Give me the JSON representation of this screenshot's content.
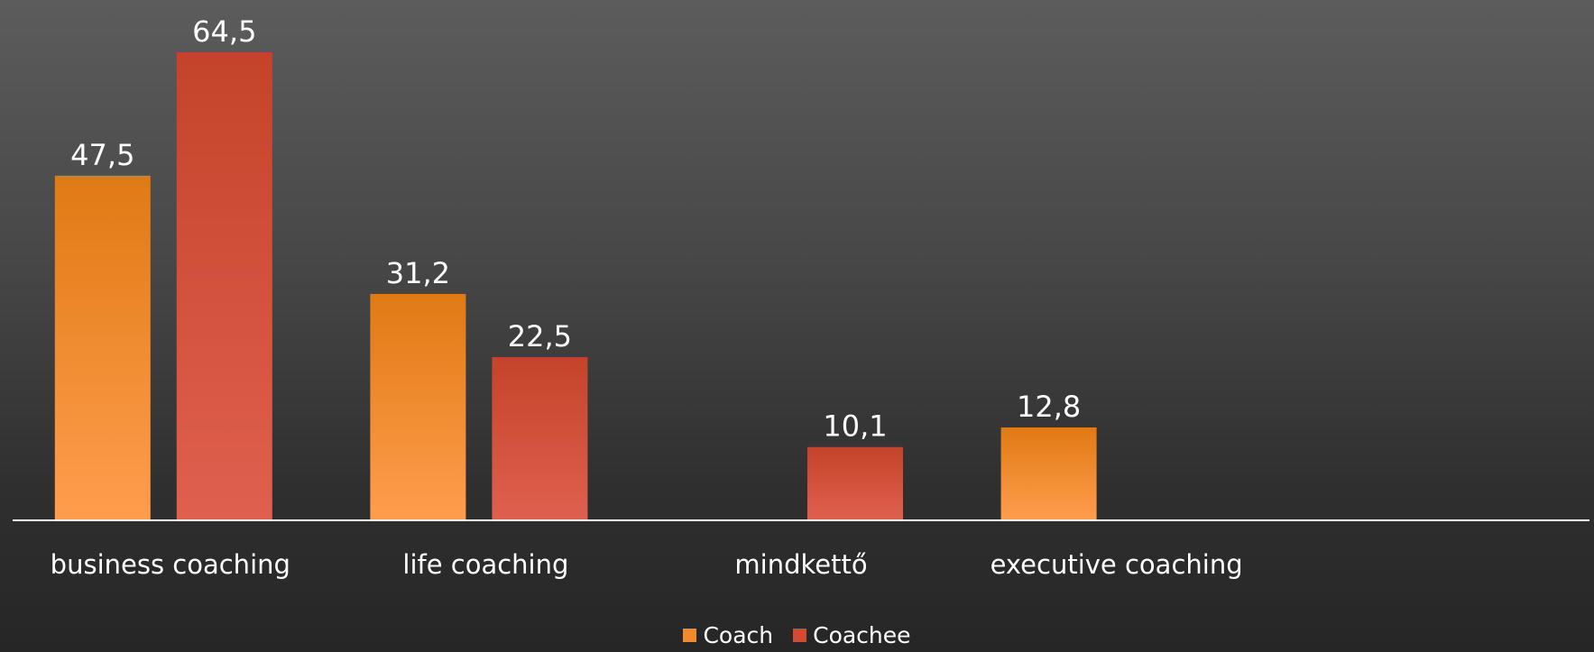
{
  "chart_data": {
    "type": "bar",
    "categories": [
      "business coaching",
      "life coaching",
      "mindkettő",
      "executive coaching",
      ""
    ],
    "series": [
      {
        "name": "Coach",
        "values": [
          47.5,
          31.2,
          null,
          12.8,
          null
        ],
        "labels": [
          "47,5",
          "31,2",
          "",
          "12,8",
          ""
        ],
        "color": "#e8801f"
      },
      {
        "name": "Coachee",
        "values": [
          64.5,
          22.5,
          10.1,
          null,
          null
        ],
        "labels": [
          "64,5",
          "22,5",
          "10,1",
          "",
          ""
        ],
        "color": "#d44a33"
      }
    ],
    "ylim": [
      0,
      70
    ],
    "grid": false,
    "legend_position": "bottom"
  },
  "legend": {
    "coach_label": "Coach",
    "coachee_label": "Coachee"
  },
  "colors": {
    "coach": "#e8801f",
    "coachee": "#d44a33",
    "axis": "#ffffff",
    "text": "#ffffff"
  }
}
